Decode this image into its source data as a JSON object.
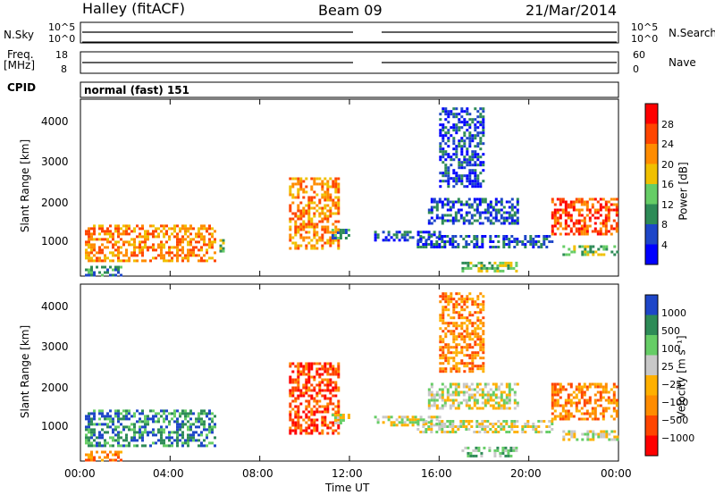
{
  "header": {
    "station": "Halley (fitACF)",
    "beam": "Beam 09",
    "date": "21/Mar/2014"
  },
  "panels": {
    "nsky": {
      "left_label": "N.Sky",
      "ticks": [
        "10^5",
        "10^0"
      ],
      "right_label": "N.Search",
      "right_ticks": [
        "10^5",
        "10^0"
      ]
    },
    "freq": {
      "left_label": "Freq.",
      "unit": "[MHz]",
      "ticks": [
        "18",
        "8"
      ],
      "right_label": "Nave",
      "right_ticks": [
        "60",
        "0"
      ]
    },
    "cpid": {
      "label": "CPID",
      "value": "normal (fast) 151"
    }
  },
  "colors": {
    "power": [
      "#0000ff",
      "#1e46c8",
      "#2e8b57",
      "#66cd66",
      "#f0c000",
      "#ff8c00",
      "#ff4500",
      "#ff0000"
    ],
    "velocity": [
      "#ff0000",
      "#ff4500",
      "#ff8c00",
      "#ffb000",
      "#c8c8c8",
      "#66cd66",
      "#2e8b57",
      "#1e46c8"
    ]
  },
  "chart_data": [
    {
      "type": "heatmap",
      "name": "power",
      "ylabel": "Slant Range [km]",
      "yticks": [
        "1000",
        "2000",
        "3000",
        "4000"
      ],
      "ylim": [
        200,
        4500
      ],
      "xlim": [
        "00:00",
        "24:00"
      ],
      "colorbar": {
        "label": "Power [dB]",
        "ticks": [
          "4",
          "8",
          "12",
          "16",
          "20",
          "24",
          "28"
        ]
      },
      "regions": [
        {
          "t": [
            0.2,
            6.0
          ],
          "r": [
            600,
            1450
          ],
          "level": 5
        },
        {
          "t": [
            0.2,
            1.8
          ],
          "r": [
            250,
            450
          ],
          "level": 2
        },
        {
          "t": [
            6.2,
            6.4
          ],
          "r": [
            800,
            1100
          ],
          "level": 3
        },
        {
          "t": [
            9.3,
            11.5
          ],
          "r": [
            850,
            2600
          ],
          "level": 5
        },
        {
          "t": [
            11.2,
            12.0
          ],
          "r": [
            1150,
            1350
          ],
          "level": 2
        },
        {
          "t": [
            13.1,
            16.0
          ],
          "r": [
            1100,
            1300
          ],
          "level": 1
        },
        {
          "t": [
            15.0,
            21.0
          ],
          "r": [
            900,
            1200
          ],
          "level": 1
        },
        {
          "t": [
            15.5,
            19.5
          ],
          "r": [
            1500,
            2100
          ],
          "level": 1
        },
        {
          "t": [
            16.0,
            18.0
          ],
          "r": [
            2400,
            4300
          ],
          "level": 1
        },
        {
          "t": [
            17.0,
            19.5
          ],
          "r": [
            350,
            550
          ],
          "level": 3
        },
        {
          "t": [
            21.0,
            23.9
          ],
          "r": [
            1250,
            2100
          ],
          "level": 6
        },
        {
          "t": [
            21.5,
            23.9
          ],
          "r": [
            700,
            950
          ],
          "level": 3
        }
      ]
    },
    {
      "type": "heatmap",
      "name": "velocity",
      "ylabel": "Slant Range [km]",
      "yticks": [
        "1000",
        "2000",
        "3000",
        "4000"
      ],
      "ylim": [
        200,
        4500
      ],
      "xlim": [
        "00:00",
        "24:00"
      ],
      "xticks": [
        "00:00",
        "04:00",
        "08:00",
        "12:00",
        "16:00",
        "20:00",
        "00:00"
      ],
      "xlabel": "Time UT",
      "colorbar": {
        "label": "Velocity [m s⁻¹]",
        "ticks": [
          "1000",
          "500",
          "100",
          "25",
          "−25",
          "−100",
          "−500",
          "−1000"
        ]
      },
      "regions": [
        {
          "t": [
            0.2,
            6.0
          ],
          "r": [
            600,
            1450
          ],
          "level": 6
        },
        {
          "t": [
            0.2,
            1.8
          ],
          "r": [
            250,
            450
          ],
          "level": 2
        },
        {
          "t": [
            9.3,
            11.5
          ],
          "r": [
            850,
            2600
          ],
          "level": 1
        },
        {
          "t": [
            11.2,
            12.0
          ],
          "r": [
            1150,
            1350
          ],
          "level": 4
        },
        {
          "t": [
            13.1,
            16.0
          ],
          "r": [
            1100,
            1300
          ],
          "level": 4
        },
        {
          "t": [
            15.0,
            21.0
          ],
          "r": [
            900,
            1200
          ],
          "level": 4
        },
        {
          "t": [
            15.5,
            19.5
          ],
          "r": [
            1500,
            2100
          ],
          "level": 4
        },
        {
          "t": [
            16.0,
            18.0
          ],
          "r": [
            2400,
            4300
          ],
          "level": 2
        },
        {
          "t": [
            17.0,
            19.5
          ],
          "r": [
            350,
            550
          ],
          "level": 5
        },
        {
          "t": [
            21.0,
            23.9
          ],
          "r": [
            1250,
            2100
          ],
          "level": 2
        },
        {
          "t": [
            21.5,
            23.9
          ],
          "r": [
            700,
            950
          ],
          "level": 4
        }
      ]
    }
  ]
}
